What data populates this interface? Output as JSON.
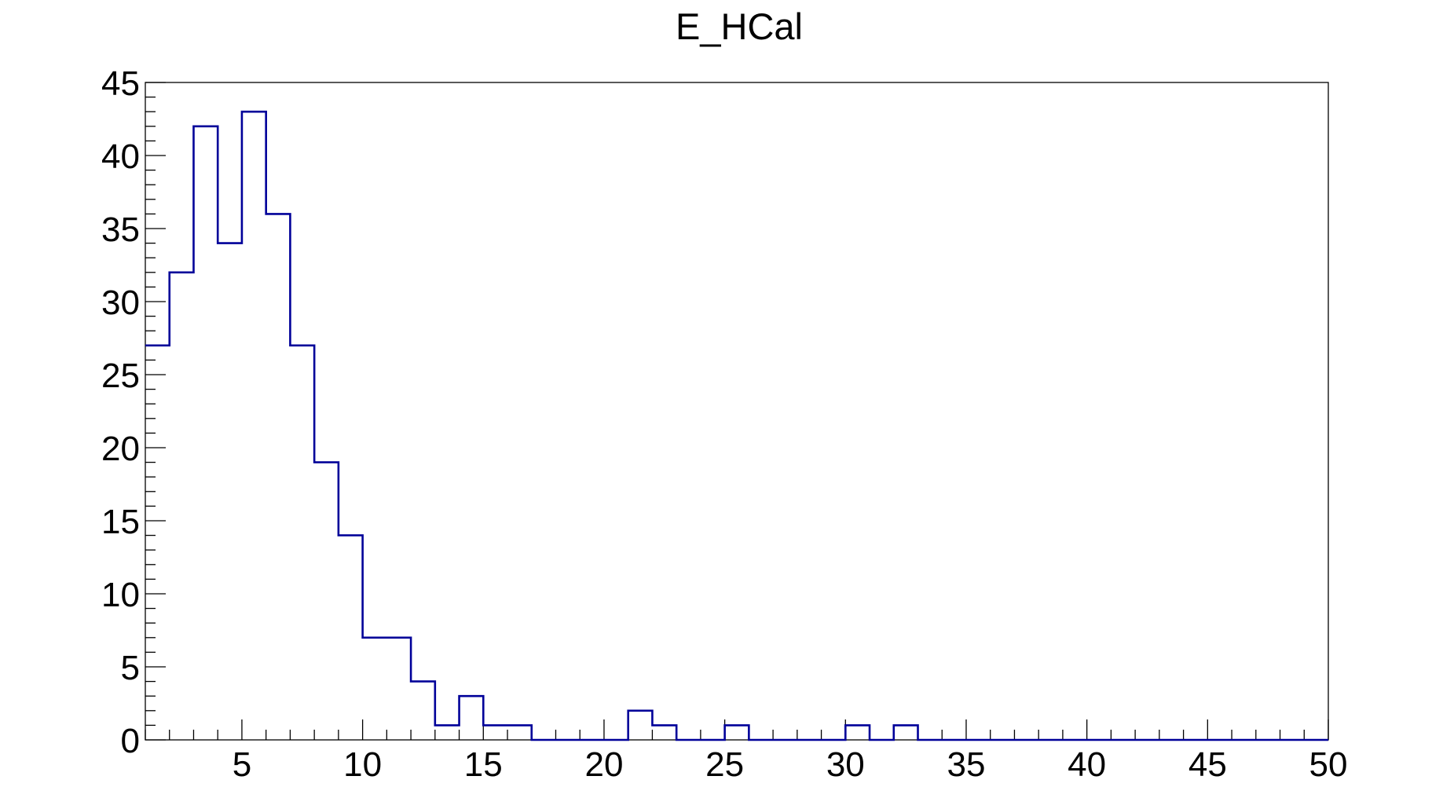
{
  "chart_data": {
    "type": "bar",
    "title": "E_HCal",
    "xlabel": "",
    "ylabel": "",
    "xlim": [
      1,
      50
    ],
    "ylim": [
      0,
      45
    ],
    "bin_width": 1,
    "bin_start": 1,
    "values": [
      27,
      32,
      42,
      34,
      43,
      36,
      27,
      19,
      14,
      7,
      7,
      4,
      1,
      3,
      1,
      1,
      0,
      0,
      0,
      0,
      2,
      1,
      0,
      0,
      1,
      0,
      0,
      0,
      0,
      1,
      0,
      1,
      0,
      0,
      0,
      0,
      0,
      0,
      0,
      0,
      0,
      0,
      0,
      0,
      0,
      0,
      0,
      0,
      0
    ],
    "x_ticks": [
      "5",
      "10",
      "15",
      "20",
      "25",
      "30",
      "35",
      "40",
      "45",
      "50"
    ],
    "y_ticks": [
      "0",
      "5",
      "10",
      "15",
      "20",
      "25",
      "30",
      "35",
      "40",
      "45"
    ],
    "grid": false,
    "legend": "none",
    "line_color": "#000099",
    "axis_color": "#000000",
    "background": "#ffffff"
  }
}
